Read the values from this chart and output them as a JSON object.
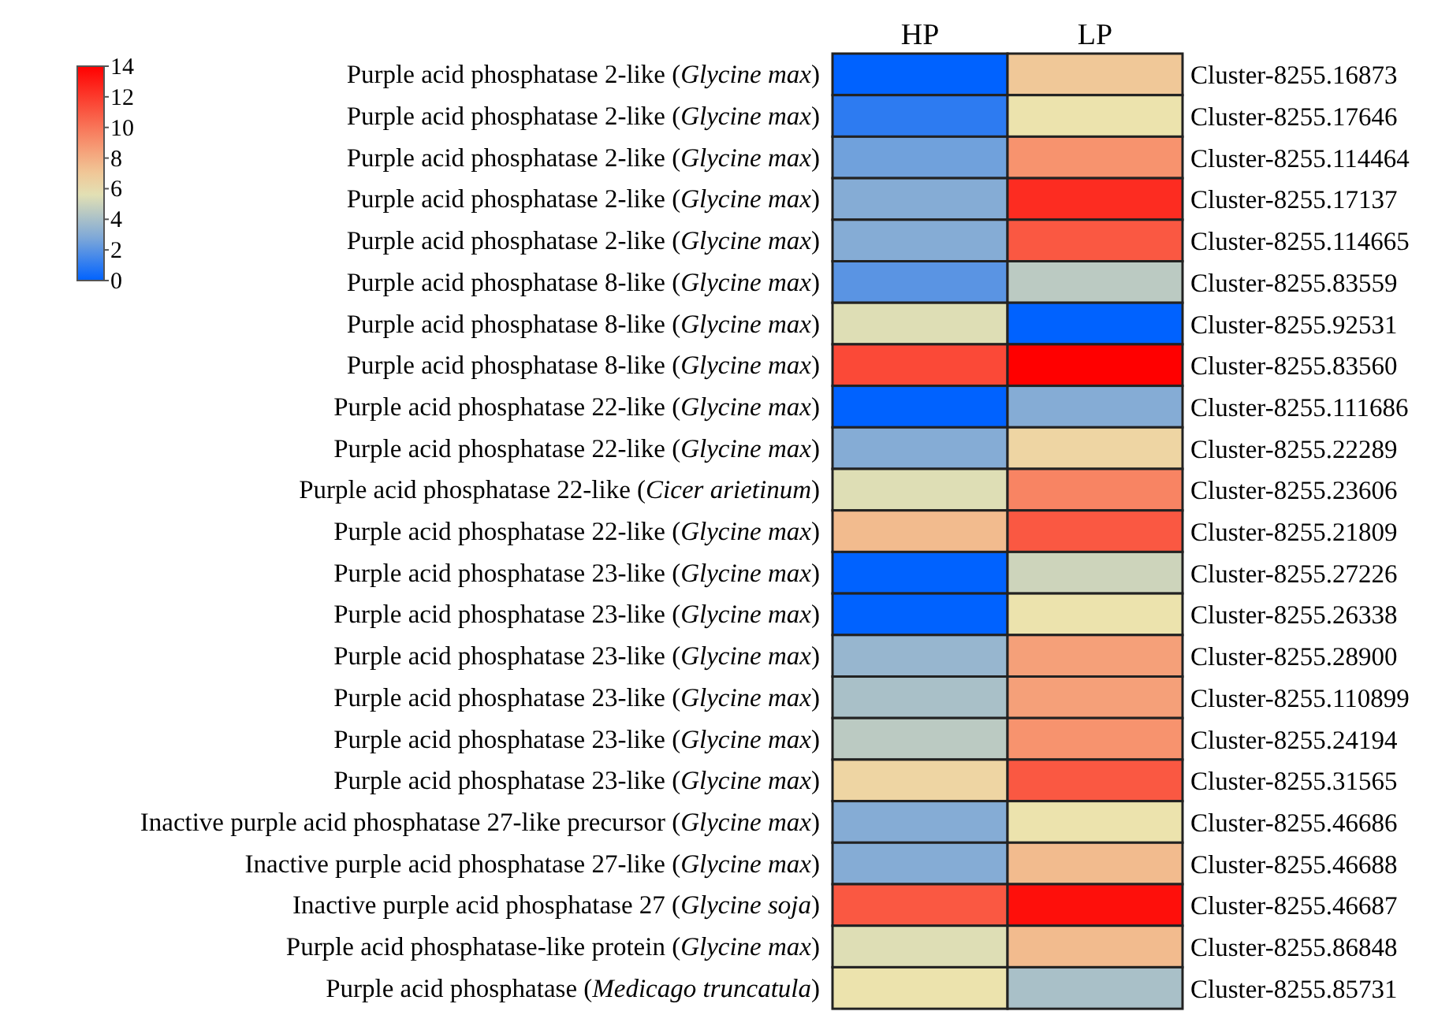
{
  "chart_data": {
    "type": "heatmap",
    "categories": [
      "HP",
      "LP"
    ],
    "y_categories": [
      "Purple acid phosphatase 2-like (Glycine max)",
      "Purple acid phosphatase 2-like (Glycine max)",
      "Purple acid phosphatase 2-like (Glycine max)",
      "Purple acid phosphatase 2-like (Glycine max)",
      "Purple acid phosphatase 2-like (Glycine max)",
      "Purple acid phosphatase 8-like (Glycine max)",
      "Purple acid phosphatase 8-like (Glycine max)",
      "Purple acid phosphatase 8-like (Glycine max)",
      "Purple acid phosphatase 22-like (Glycine max)",
      "Purple acid phosphatase 22-like (Glycine max)",
      "Purple acid phosphatase 22-like (Cicer arietinum)",
      "Purple acid phosphatase 22-like (Glycine max)",
      "Purple acid phosphatase 23-like (Glycine max)",
      "Purple acid phosphatase 23-like (Glycine max)",
      "Purple acid phosphatase 23-like (Glycine max)",
      "Purple acid phosphatase 23-like (Glycine max)",
      "Purple acid phosphatase 23-like (Glycine max)",
      "Purple acid phosphatase 23-like (Glycine max)",
      "Inactive purple acid phosphatase 27-like precursor (Glycine max)",
      "Inactive purple acid phosphatase 27-like (Glycine max)",
      "Inactive purple acid phosphatase 27 (Glycine soja)",
      "Purple acid phosphatase-like protein (Glycine max)",
      "Purple acid phosphatase (Medicago truncatula)"
    ],
    "y2_categories": [
      "Cluster-8255.16873",
      "Cluster-8255.17646",
      "Cluster-8255.114464",
      "Cluster-8255.17137",
      "Cluster-8255.114665",
      "Cluster-8255.83559",
      "Cluster-8255.92531",
      "Cluster-8255.83560",
      "Cluster-8255.111686",
      "Cluster-8255.22289",
      "Cluster-8255.23606",
      "Cluster-8255.21809",
      "Cluster-8255.27226",
      "Cluster-8255.26338",
      "Cluster-8255.28900",
      "Cluster-8255.110899",
      "Cluster-8255.24194",
      "Cluster-8255.31565",
      "Cluster-8255.46686",
      "Cluster-8255.46688",
      "Cluster-8255.46687",
      "Cluster-8255.86848",
      "Cluster-8255.85731"
    ],
    "cells": [
      [
        0,
        7
      ],
      [
        1,
        6
      ],
      [
        2.5,
        9
      ],
      [
        3,
        12.5
      ],
      [
        3,
        11
      ],
      [
        2,
        4.5
      ],
      [
        5.5,
        0
      ],
      [
        11.5,
        14
      ],
      [
        0,
        3
      ],
      [
        3,
        6.5
      ],
      [
        5.5,
        9.5
      ],
      [
        7.5,
        11
      ],
      [
        0,
        5
      ],
      [
        0,
        6
      ],
      [
        3.5,
        8.5
      ],
      [
        4,
        8.5
      ],
      [
        4.5,
        9
      ],
      [
        6.5,
        11
      ],
      [
        3,
        6
      ],
      [
        3,
        7.5
      ],
      [
        11,
        13.5
      ],
      [
        5.5,
        7.5
      ],
      [
        6,
        4
      ]
    ],
    "clim": [
      0,
      14
    ],
    "cticks": [
      0,
      2,
      4,
      6,
      8,
      10,
      12,
      14
    ]
  }
}
